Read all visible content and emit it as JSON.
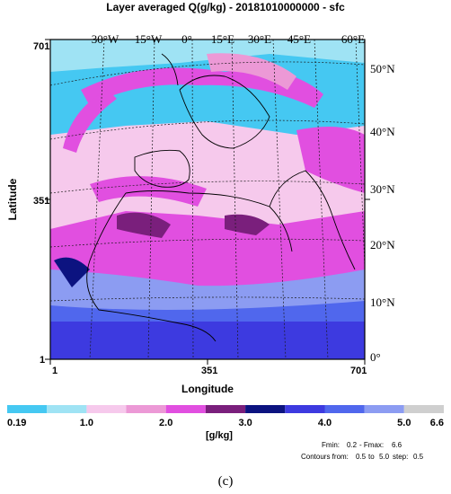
{
  "chart_data": {
    "type": "heatmap",
    "title": "Layer averaged Q(g/kg) - 20181010000000 - sfc",
    "xlabel": "Longitude",
    "ylabel": "Latitude",
    "x_grid_ticks": [
      "1",
      "351",
      "701"
    ],
    "y_grid_ticks": [
      "701",
      "351",
      "1"
    ],
    "lon_labels": [
      "30°W",
      "15°W",
      "0°",
      "15°E",
      "30°E",
      "45°E",
      "60°E"
    ],
    "lat_labels": [
      "50°N",
      "40°N",
      "30°N",
      "20°N",
      "10°N",
      "0°"
    ],
    "colorbar": {
      "unit": "[g/kg]",
      "tick_labels": [
        "0.19",
        "1.0",
        "2.0",
        "3.0",
        "4.0",
        "5.0",
        "6.6"
      ],
      "bins": [
        {
          "from": 0.19,
          "to": 0.5,
          "color": "#45c8f2"
        },
        {
          "from": 0.5,
          "to": 1.0,
          "color": "#9fe3f4"
        },
        {
          "from": 1.0,
          "to": 1.5,
          "color": "#f6c9ec"
        },
        {
          "from": 1.5,
          "to": 2.0,
          "color": "#ec99d6"
        },
        {
          "from": 2.0,
          "to": 2.5,
          "color": "#e14fe0"
        },
        {
          "from": 2.5,
          "to": 3.0,
          "color": "#7a1f7c"
        },
        {
          "from": 3.0,
          "to": 3.5,
          "color": "#0c1380"
        },
        {
          "from": 3.5,
          "to": 4.0,
          "color": "#3d3ae0"
        },
        {
          "from": 4.0,
          "to": 4.5,
          "color": "#5067ed"
        },
        {
          "from": 4.5,
          "to": 5.0,
          "color": "#8c9cf2"
        },
        {
          "from": 5.0,
          "to": 6.6,
          "color": "#cfcfcf"
        }
      ]
    },
    "stats": {
      "fmin_label": "Fmin:",
      "fmin": "0.2",
      "fmax_label": "- Fmax:",
      "fmax": "6.6",
      "contours_label": "Contours from:",
      "contours_from": "0.5",
      "contours_to_label": "to",
      "contours_to": "5.0",
      "step_label": "step:",
      "step": "0.5"
    },
    "caption": "(c)"
  }
}
